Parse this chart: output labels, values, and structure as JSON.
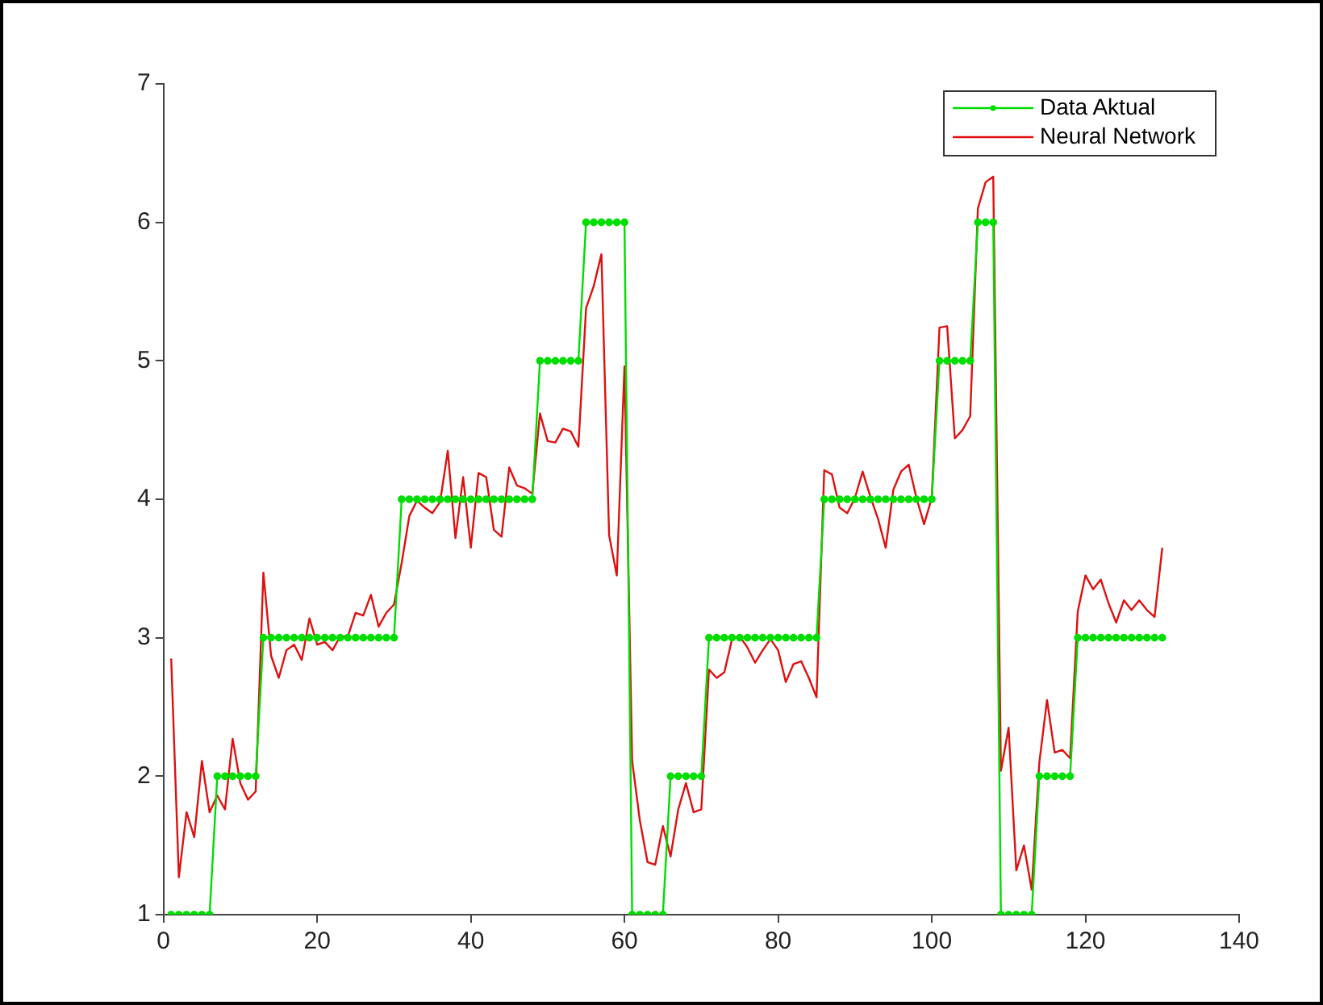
{
  "chart_data": {
    "type": "line",
    "x": [
      1,
      2,
      3,
      4,
      5,
      6,
      7,
      8,
      9,
      10,
      11,
      12,
      13,
      14,
      15,
      16,
      17,
      18,
      19,
      20,
      21,
      22,
      23,
      24,
      25,
      26,
      27,
      28,
      29,
      30,
      31,
      32,
      33,
      34,
      35,
      36,
      37,
      38,
      39,
      40,
      41,
      42,
      43,
      44,
      45,
      46,
      47,
      48,
      49,
      50,
      51,
      52,
      53,
      54,
      55,
      56,
      57,
      58,
      59,
      60,
      61,
      62,
      63,
      64,
      65,
      66,
      67,
      68,
      69,
      70,
      71,
      72,
      73,
      74,
      75,
      76,
      77,
      78,
      79,
      80,
      81,
      82,
      83,
      84,
      85,
      86,
      87,
      88,
      89,
      90,
      91,
      92,
      93,
      94,
      95,
      96,
      97,
      98,
      99,
      100,
      101,
      102,
      103,
      104,
      105,
      106,
      107,
      108,
      109,
      110,
      111,
      112,
      113,
      114,
      115,
      116,
      117,
      118,
      119,
      120,
      121,
      122,
      123,
      124,
      125,
      126,
      127,
      128,
      129,
      130
    ],
    "series": [
      {
        "name": "Data Aktual",
        "color": "#00dd00",
        "marker": "circle",
        "values": [
          1,
          1,
          1,
          1,
          1,
          1,
          2,
          2,
          2,
          2,
          2,
          2,
          3,
          3,
          3,
          3,
          3,
          3,
          3,
          3,
          3,
          3,
          3,
          3,
          3,
          3,
          3,
          3,
          3,
          3,
          4,
          4,
          4,
          4,
          4,
          4,
          4,
          4,
          4,
          4,
          4,
          4,
          4,
          4,
          4,
          4,
          4,
          4,
          5,
          5,
          5,
          5,
          5,
          5,
          6,
          6,
          6,
          6,
          6,
          6,
          1,
          1,
          1,
          1,
          1,
          2,
          2,
          2,
          2,
          2,
          3,
          3,
          3,
          3,
          3,
          3,
          3,
          3,
          3,
          3,
          3,
          3,
          3,
          3,
          3,
          4,
          4,
          4,
          4,
          4,
          4,
          4,
          4,
          4,
          4,
          4,
          4,
          4,
          4,
          4,
          5,
          5,
          5,
          5,
          5,
          6,
          6,
          6,
          1,
          1,
          1,
          1,
          1,
          2,
          2,
          2,
          2,
          2,
          3,
          3,
          3,
          3,
          3,
          3,
          3,
          3,
          3,
          3,
          3,
          3
        ]
      },
      {
        "name": "Neural Network",
        "color": "#dd1111",
        "marker": "none",
        "values": [
          2.85,
          1.27,
          1.74,
          1.56,
          2.11,
          1.74,
          1.86,
          1.76,
          2.27,
          1.95,
          1.83,
          1.89,
          3.47,
          2.87,
          2.71,
          2.91,
          2.95,
          2.84,
          3.14,
          2.95,
          2.97,
          2.91,
          3.01,
          3.01,
          3.18,
          3.16,
          3.31,
          3.08,
          3.18,
          3.24,
          3.54,
          3.88,
          3.99,
          3.94,
          3.9,
          3.98,
          4.35,
          3.72,
          4.16,
          3.65,
          4.19,
          4.16,
          3.78,
          3.73,
          4.23,
          4.1,
          4.08,
          4.04,
          4.62,
          4.42,
          4.41,
          4.51,
          4.49,
          4.38,
          5.38,
          5.54,
          5.77,
          3.74,
          3.45,
          4.96,
          2.11,
          1.68,
          1.38,
          1.36,
          1.64,
          1.42,
          1.76,
          1.95,
          1.74,
          1.76,
          2.77,
          2.71,
          2.75,
          2.99,
          3.01,
          2.93,
          2.82,
          2.91,
          2.99,
          2.91,
          2.68,
          2.81,
          2.83,
          2.71,
          2.57,
          4.21,
          4.18,
          3.94,
          3.9,
          4.01,
          4.2,
          4.02,
          3.86,
          3.65,
          4.07,
          4.2,
          4.25,
          4.01,
          3.82,
          4.01,
          5.24,
          5.25,
          4.44,
          4.5,
          4.6,
          6.1,
          6.29,
          6.33,
          2.04,
          2.35,
          1.32,
          1.5,
          1.18,
          2.1,
          2.55,
          2.17,
          2.19,
          2.13,
          3.19,
          3.45,
          3.35,
          3.42,
          3.25,
          3.11,
          3.27,
          3.2,
          3.27,
          3.2,
          3.15,
          3.65
        ]
      }
    ],
    "xlim": [
      0,
      140
    ],
    "xticks": [
      0,
      20,
      40,
      60,
      80,
      100,
      120,
      140
    ],
    "ylim": [
      1,
      7
    ],
    "yticks": [
      1,
      2,
      3,
      4,
      5,
      6,
      7
    ],
    "grid": false,
    "legend": "top right"
  }
}
